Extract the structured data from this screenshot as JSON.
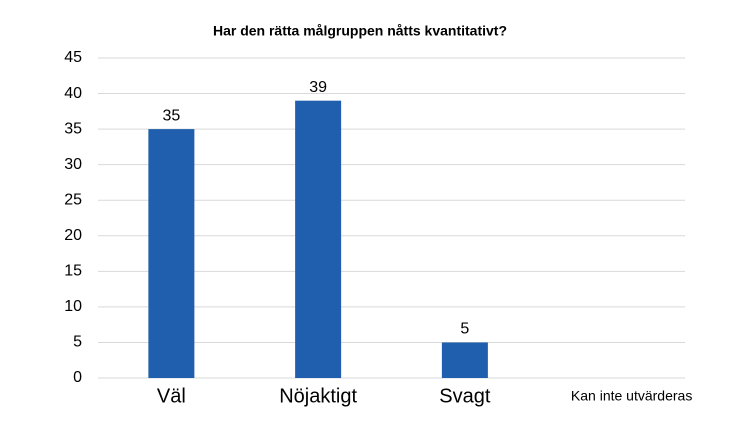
{
  "chart_data": {
    "type": "bar",
    "title": "Har den rätta målgruppen nåtts kvantitativt?",
    "categories": [
      "Väl",
      "Nöjaktigt",
      "Svagt",
      "Kan inte utvärderas"
    ],
    "values": [
      35,
      39,
      5,
      null
    ],
    "color": "#1f5fad",
    "ylim": [
      0,
      45
    ],
    "yticks": [
      0,
      5,
      10,
      15,
      20,
      25,
      30,
      35,
      40,
      45
    ],
    "grid": true
  }
}
